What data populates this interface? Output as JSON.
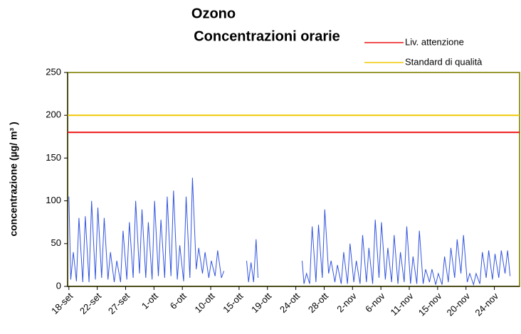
{
  "chart_data": {
    "type": "line",
    "title": "Ozono",
    "subtitle": "Concentrazioni orarie",
    "y_label": "concentrazione (µg/ m³ )",
    "color": "#3355dd",
    "x": [
      0,
      0.3,
      0.7,
      1.2,
      1.6,
      2.2,
      2.6,
      3.2,
      3.6,
      4.2,
      4.6,
      5.2,
      5.6,
      6.2,
      6.6,
      7.2,
      7.6,
      8.2,
      8.6,
      9.2,
      9.6,
      10.2,
      10.6,
      11.2,
      11.6,
      12.2,
      12.6,
      13.2,
      13.6,
      14.2,
      14.6,
      15.2,
      15.6,
      16.2,
      16.6,
      17.2,
      17.6,
      18.2,
      18.6,
      19.2,
      19.6,
      20.2,
      20.6,
      21.2,
      21.6,
      22.2,
      22.6,
      23.2,
      23.6,
      24.2,
      24.6,
      26,
      28.2,
      28.5,
      28.9,
      29.3,
      29.7,
      30,
      33,
      37,
      37.3,
      37.7,
      38.2,
      38.6,
      39.2,
      39.6,
      40.2,
      40.6,
      41.2,
      41.6,
      42.2,
      42.6,
      43.2,
      43.6,
      44.2,
      44.6,
      45.2,
      45.6,
      46.2,
      46.6,
      47.2,
      47.6,
      48.2,
      48.6,
      49.2,
      49.6,
      50.2,
      50.6,
      51.2,
      51.6,
      52.2,
      52.6,
      53.2,
      53.6,
      54.2,
      54.6,
      55.2,
      55.6,
      56.2,
      56.6,
      57.2,
      57.6,
      58.2,
      58.6,
      59.2,
      59.6,
      60.2,
      60.6,
      61.2,
      61.6,
      62.2,
      62.6,
      63.2,
      63.6,
      64.2,
      64.6,
      65.2,
      65.6,
      66.2,
      66.6,
      67.2,
      67.6,
      68.2,
      68.6,
      69.2,
      69.6,
      70
    ],
    "values": [
      105,
      8,
      40,
      6,
      80,
      5,
      82,
      5,
      100,
      8,
      92,
      10,
      80,
      8,
      40,
      5,
      30,
      5,
      65,
      8,
      75,
      10,
      100,
      15,
      90,
      10,
      75,
      8,
      100,
      12,
      78,
      10,
      105,
      12,
      112,
      8,
      48,
      6,
      105,
      10,
      127,
      20,
      45,
      15,
      40,
      10,
      30,
      12,
      42,
      10,
      18,
      null,
      30,
      5,
      28,
      5,
      55,
      10,
      null,
      30,
      3,
      15,
      3,
      70,
      5,
      72,
      10,
      90,
      15,
      30,
      5,
      25,
      3,
      40,
      3,
      50,
      5,
      30,
      3,
      60,
      5,
      45,
      3,
      78,
      10,
      75,
      8,
      45,
      5,
      60,
      3,
      40,
      5,
      70,
      3,
      35,
      3,
      65,
      3,
      20,
      5,
      20,
      2,
      15,
      2,
      35,
      5,
      45,
      10,
      55,
      15,
      60,
      5,
      15,
      2,
      15,
      3,
      40,
      10,
      42,
      8,
      38,
      10,
      42,
      15,
      42,
      12
    ],
    "reference_lines": [
      {
        "name": "Liv. attenzione",
        "value": 180,
        "color": "#ee1111"
      },
      {
        "name": "Standard di qualità",
        "value": 200,
        "color": "#f0c800"
      }
    ],
    "xlim": [
      -0.2,
      71.5
    ],
    "xticks": [
      {
        "value": 0,
        "label": "18-set"
      },
      {
        "value": 4.5,
        "label": "22-set"
      },
      {
        "value": 9,
        "label": "27-set"
      },
      {
        "value": 13.5,
        "label": "1-ott"
      },
      {
        "value": 18,
        "label": "6-ott"
      },
      {
        "value": 22.5,
        "label": "10-ott"
      },
      {
        "value": 27,
        "label": "15-ott"
      },
      {
        "value": 31.5,
        "label": "19-ott"
      },
      {
        "value": 36,
        "label": "24-ott"
      },
      {
        "value": 40.5,
        "label": "28-ott"
      },
      {
        "value": 45,
        "label": "2-nov"
      },
      {
        "value": 49.5,
        "label": "6-nov"
      },
      {
        "value": 54,
        "label": "11-nov"
      },
      {
        "value": 58.5,
        "label": "15-nov"
      },
      {
        "value": 63,
        "label": "20-nov"
      },
      {
        "value": 67.5,
        "label": "24-nov"
      }
    ],
    "ylim": [
      0,
      250
    ],
    "yticks": [
      0,
      50,
      100,
      150,
      200,
      250
    ]
  }
}
